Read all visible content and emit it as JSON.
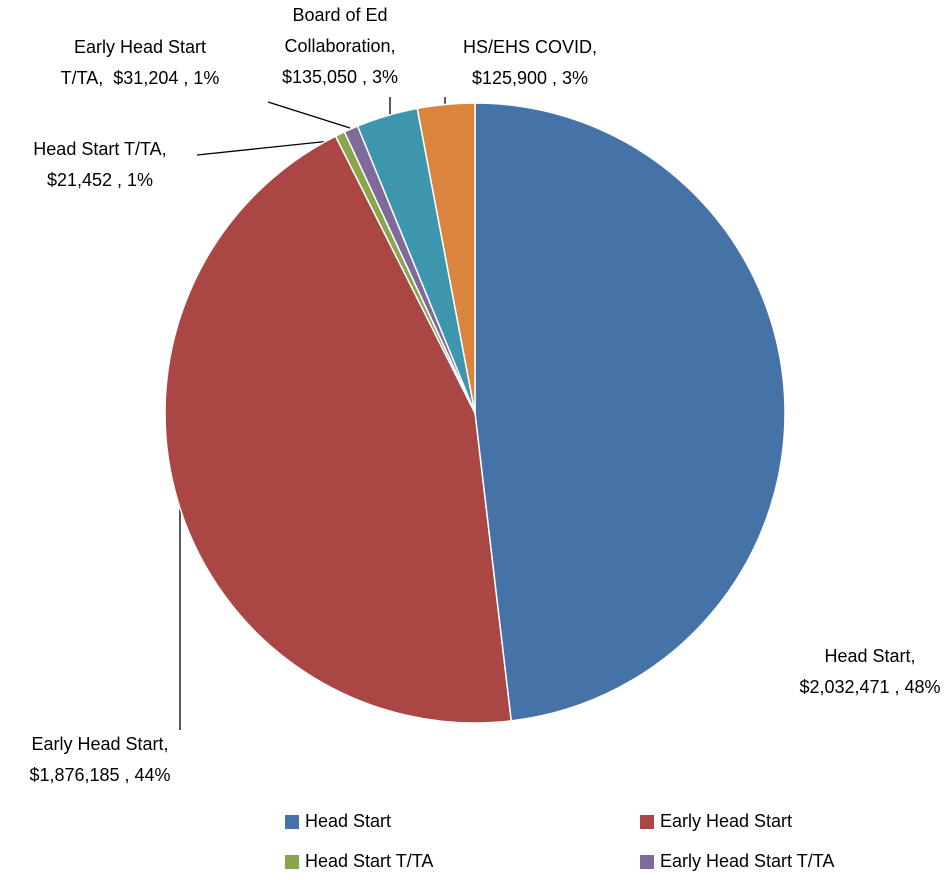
{
  "chart_data": {
    "type": "pie",
    "categories": [
      "Head Start",
      "Early Head Start",
      "Head Start T/TA",
      "Early Head Start T/TA",
      "Board of Ed Collaboration",
      "HS/EHS COVID"
    ],
    "values": [
      2032471,
      1876185,
      21452,
      31204,
      135050,
      125900
    ],
    "value_labels": [
      "Head Start,\n$2,032,471 , 48%",
      "Early Head Start,\n$1,876,185 , 44%",
      "Head Start T/TA,\n$21,452 , 1%",
      "Early Head Start\nT/TA,  $31,204 , 1%",
      "Board of Ed\nCollaboration,\n$135,050 , 3%",
      "HS/EHS COVID,\n$125,900 , 3%"
    ],
    "colors": [
      "#4572a7",
      "#aa4643",
      "#89a54e",
      "#80699b",
      "#3d96ae",
      "#db843d"
    ],
    "legend": "bottom"
  }
}
